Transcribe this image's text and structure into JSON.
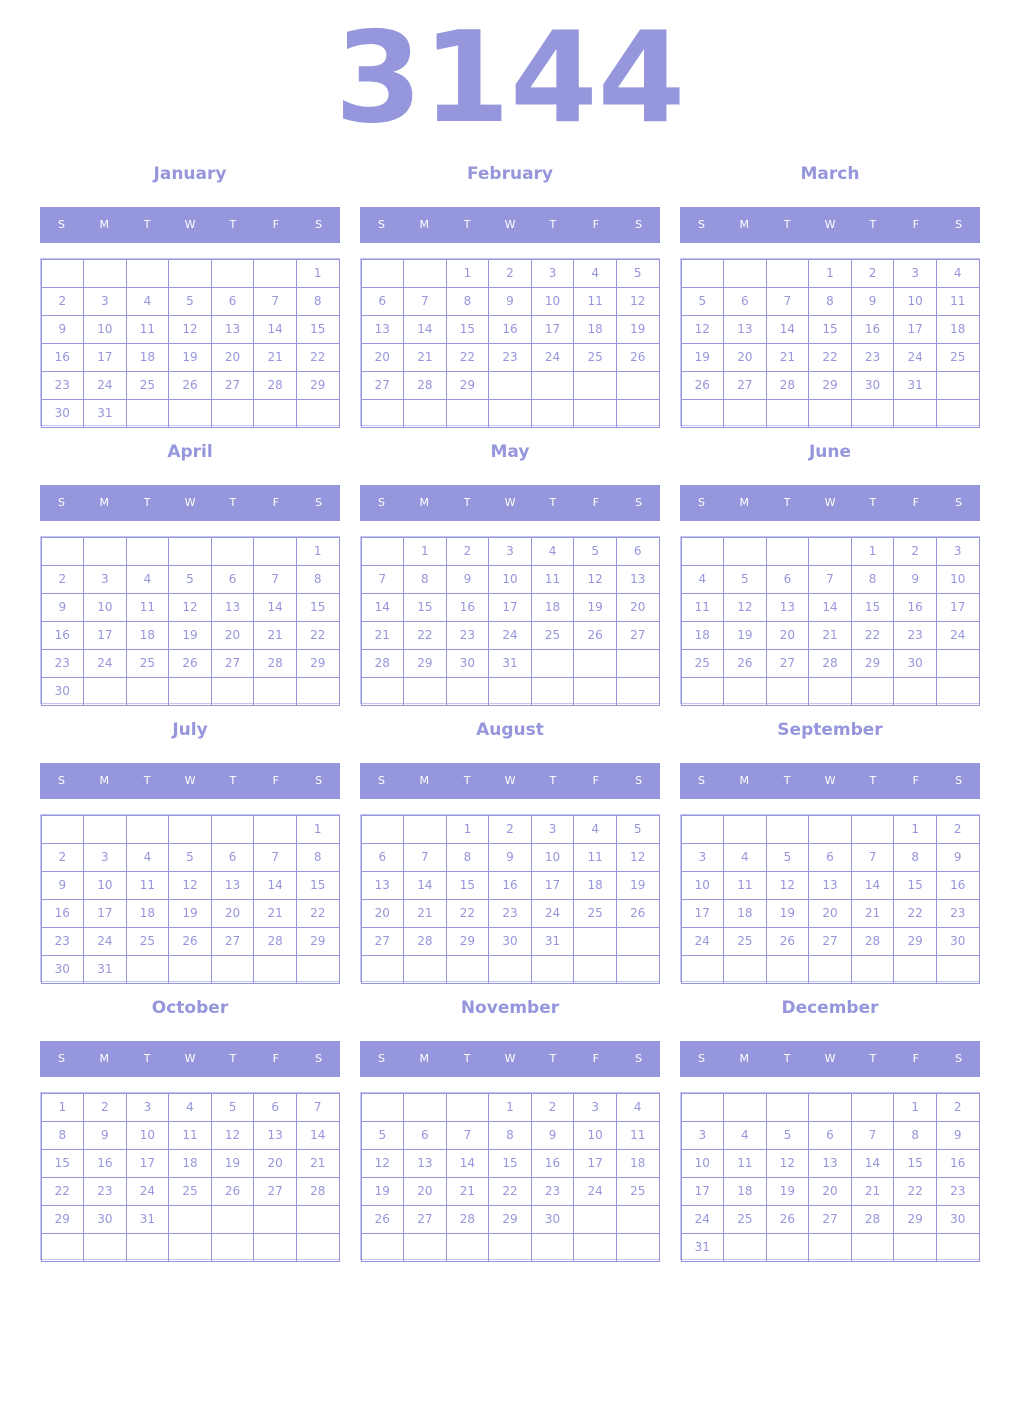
{
  "year": "3144",
  "weekdays": [
    "S",
    "M",
    "T",
    "W",
    "T",
    "F",
    "S"
  ],
  "accent": "#9696dc",
  "months": [
    {
      "name": "January",
      "first_weekday": 6,
      "days": 31
    },
    {
      "name": "February",
      "first_weekday": 2,
      "days": 29
    },
    {
      "name": "March",
      "first_weekday": 3,
      "days": 31
    },
    {
      "name": "April",
      "first_weekday": 6,
      "days": 30
    },
    {
      "name": "May",
      "first_weekday": 1,
      "days": 31
    },
    {
      "name": "June",
      "first_weekday": 4,
      "days": 30
    },
    {
      "name": "July",
      "first_weekday": 6,
      "days": 31
    },
    {
      "name": "August",
      "first_weekday": 2,
      "days": 31
    },
    {
      "name": "September",
      "first_weekday": 5,
      "days": 30
    },
    {
      "name": "October",
      "first_weekday": 0,
      "days": 31
    },
    {
      "name": "November",
      "first_weekday": 3,
      "days": 30
    },
    {
      "name": "December",
      "first_weekday": 5,
      "days": 31
    }
  ]
}
